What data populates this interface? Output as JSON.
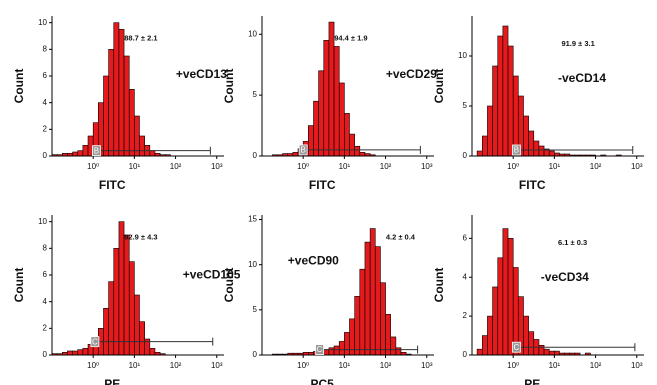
{
  "chart_data": [
    {
      "type": "histogram",
      "xlabel": "FITC",
      "ylabel": "Count",
      "annotation": "88.7 ± 2.1",
      "marker": "+veCD13",
      "log_x": true,
      "xlim": [
        0.1,
        1500
      ],
      "ylim": [
        0,
        10.5
      ],
      "xticks": [
        {
          "value": 1,
          "label": "10⁰"
        },
        {
          "value": 10,
          "label": "10¹"
        },
        {
          "value": 100,
          "label": "10²"
        },
        {
          "value": 1000,
          "label": "10³"
        }
      ],
      "yticks": [
        0,
        2,
        4,
        6,
        8,
        10
      ],
      "color": "#e41a1c",
      "edgecolor": "#000000",
      "bins": [
        0.1,
        0.133,
        0.178,
        0.237,
        0.316,
        0.422,
        0.562,
        0.75,
        1,
        1.33,
        1.78,
        2.37,
        3.16,
        4.22,
        5.62,
        7.5,
        10,
        13.3,
        17.8,
        23.7,
        31.6,
        42.2,
        56.2,
        75,
        100,
        133,
        178,
        237,
        316,
        422,
        562,
        750,
        1000
      ],
      "values": [
        0.1,
        0.1,
        0.2,
        0.2,
        0.3,
        0.4,
        0.8,
        1.5,
        2.5,
        4,
        6,
        8,
        10,
        9.5,
        7.5,
        5,
        3,
        1.5,
        0.8,
        0.4,
        0.2,
        0.1,
        0.1,
        0,
        0,
        0,
        0,
        0,
        0,
        0,
        0,
        0
      ],
      "gate": {
        "range": [
          1.2,
          700
        ],
        "y": 0.4
      },
      "gate_label": "B"
    },
    {
      "type": "histogram",
      "xlabel": "FITC",
      "ylabel": "Count",
      "annotation": "94.4 ± 1.9",
      "marker": "+veCD29",
      "log_x": true,
      "xlim": [
        0.1,
        1500
      ],
      "ylim": [
        0,
        11.5
      ],
      "xticks": [
        {
          "value": 1,
          "label": "10⁰"
        },
        {
          "value": 10,
          "label": "10¹"
        },
        {
          "value": 100,
          "label": "10²"
        },
        {
          "value": 1000,
          "label": "10³"
        }
      ],
      "yticks": [
        0,
        5,
        10
      ],
      "color": "#e41a1c",
      "edgecolor": "#000000",
      "bins": [
        0.1,
        0.133,
        0.178,
        0.237,
        0.316,
        0.422,
        0.562,
        0.75,
        1,
        1.33,
        1.78,
        2.37,
        3.16,
        4.22,
        5.62,
        7.5,
        10,
        13.3,
        17.8,
        23.7,
        31.6,
        42.2,
        56.2,
        75,
        100,
        133,
        178,
        237,
        316,
        422,
        562,
        750,
        1000
      ],
      "values": [
        0,
        0,
        0.1,
        0.1,
        0.2,
        0.2,
        0.3,
        0.6,
        1.2,
        2.5,
        4.5,
        7,
        9.5,
        11,
        9,
        6,
        3.5,
        1.8,
        0.8,
        0.3,
        0.2,
        0.1,
        0,
        0,
        0,
        0,
        0,
        0,
        0,
        0,
        0,
        0
      ],
      "gate": {
        "range": [
          1,
          700
        ],
        "y": 0.5
      },
      "gate_label": "B"
    },
    {
      "type": "histogram",
      "xlabel": "FITC",
      "ylabel": "Count",
      "annotation": "91.9 ± 3.1",
      "marker": "-veCD14",
      "log_x": true,
      "xlim": [
        0.1,
        1500
      ],
      "ylim": [
        0,
        14
      ],
      "xticks": [
        {
          "value": 1,
          "label": "10⁰"
        },
        {
          "value": 10,
          "label": "10¹"
        },
        {
          "value": 100,
          "label": "10²"
        },
        {
          "value": 1000,
          "label": "10³"
        }
      ],
      "yticks": [
        0,
        5,
        10
      ],
      "color": "#e41a1c",
      "edgecolor": "#000000",
      "bins": [
        0.1,
        0.133,
        0.178,
        0.237,
        0.316,
        0.422,
        0.562,
        0.75,
        1,
        1.33,
        1.78,
        2.37,
        3.16,
        4.22,
        5.62,
        7.5,
        10,
        13.3,
        17.8,
        23.7,
        31.6,
        42.2,
        56.2,
        75,
        100,
        133,
        178,
        237,
        316,
        422,
        562,
        750,
        1000
      ],
      "values": [
        0,
        0.5,
        2,
        5,
        9,
        12,
        13,
        11,
        8,
        6,
        4,
        2.5,
        1.5,
        1,
        0.7,
        0.5,
        0.3,
        0.2,
        0.2,
        0.1,
        0.1,
        0.1,
        0.1,
        0.1,
        0,
        0.1,
        0,
        0,
        0.1,
        0,
        0,
        0
      ],
      "gate": {
        "range": [
          1.2,
          800
        ],
        "y": 0.6
      },
      "gate_label": "B"
    },
    {
      "type": "histogram",
      "xlabel": "PE",
      "ylabel": "Count",
      "annotation": "92.9 ± 4.3",
      "marker": "+veCD105",
      "log_x": true,
      "xlim": [
        0.1,
        1500
      ],
      "ylim": [
        0,
        10.5
      ],
      "xticks": [
        {
          "value": 1,
          "label": "10⁰"
        },
        {
          "value": 10,
          "label": "10¹"
        },
        {
          "value": 100,
          "label": "10²"
        },
        {
          "value": 1000,
          "label": "10³"
        }
      ],
      "yticks": [
        0,
        2,
        4,
        6,
        8,
        10
      ],
      "color": "#e41a1c",
      "edgecolor": "#000000",
      "bins": [
        0.1,
        0.133,
        0.178,
        0.237,
        0.316,
        0.422,
        0.562,
        0.75,
        1,
        1.33,
        1.78,
        2.37,
        3.16,
        4.22,
        5.62,
        7.5,
        10,
        13.3,
        17.8,
        23.7,
        31.6,
        42.2,
        56.2,
        75,
        100,
        133,
        178,
        237,
        316,
        422,
        562,
        750,
        1000
      ],
      "values": [
        0.1,
        0.1,
        0.2,
        0.3,
        0.3,
        0.4,
        0.5,
        0.8,
        1.2,
        2,
        3.5,
        5.5,
        8,
        10,
        9,
        7,
        4.5,
        2.5,
        1.2,
        0.5,
        0.2,
        0.1,
        0,
        0,
        0,
        0,
        0,
        0,
        0,
        0,
        0,
        0
      ],
      "gate": {
        "range": [
          1.1,
          800
        ],
        "y": 1
      },
      "gate_label": "C"
    },
    {
      "type": "histogram",
      "xlabel": "PC5",
      "ylabel": "Count",
      "annotation": "4.2 ± 0.4",
      "marker": "+veCD90",
      "log_x": true,
      "xlim": [
        0.1,
        1500
      ],
      "ylim": [
        0,
        15.5
      ],
      "xticks": [
        {
          "value": 1,
          "label": "10⁰"
        },
        {
          "value": 10,
          "label": "10¹"
        },
        {
          "value": 100,
          "label": "10²"
        },
        {
          "value": 1000,
          "label": "10³"
        }
      ],
      "yticks": [
        0,
        5,
        10,
        15
      ],
      "color": "#e41a1c",
      "edgecolor": "#000000",
      "bins": [
        0.1,
        0.133,
        0.178,
        0.237,
        0.316,
        0.422,
        0.562,
        0.75,
        1,
        1.33,
        1.78,
        2.37,
        3.16,
        4.22,
        5.62,
        7.5,
        10,
        13.3,
        17.8,
        23.7,
        31.6,
        42.2,
        56.2,
        75,
        100,
        133,
        178,
        237,
        316,
        422,
        562,
        750,
        1000
      ],
      "values": [
        0,
        0,
        0.1,
        0.1,
        0.1,
        0.2,
        0.2,
        0.2,
        0.3,
        0.3,
        0.4,
        0.5,
        0.6,
        0.8,
        1,
        1.5,
        2.5,
        4,
        6.5,
        9.5,
        12.5,
        14,
        12,
        8,
        4.5,
        2,
        0.8,
        0.3,
        0.1,
        0,
        0,
        0
      ],
      "gate": {
        "range": [
          2.5,
          600
        ],
        "y": 0.6
      },
      "gate_label": "C"
    },
    {
      "type": "histogram",
      "xlabel": "PE",
      "ylabel": "Count",
      "annotation": "6.1 ± 0.3",
      "marker": "-veCD34",
      "log_x": true,
      "xlim": [
        0.1,
        1500
      ],
      "ylim": [
        0,
        7.2
      ],
      "xticks": [
        {
          "value": 1,
          "label": "10⁰"
        },
        {
          "value": 10,
          "label": "10¹"
        },
        {
          "value": 100,
          "label": "10²"
        },
        {
          "value": 1000,
          "label": "10³"
        }
      ],
      "yticks": [
        0,
        2,
        4,
        6
      ],
      "color": "#e41a1c",
      "edgecolor": "#000000",
      "bins": [
        0.1,
        0.133,
        0.178,
        0.237,
        0.316,
        0.422,
        0.562,
        0.75,
        1,
        1.33,
        1.78,
        2.37,
        3.16,
        4.22,
        5.62,
        7.5,
        10,
        13.3,
        17.8,
        23.7,
        31.6,
        42.2,
        56.2,
        75,
        100,
        133,
        178,
        237,
        316,
        422,
        562,
        750,
        1000
      ],
      "values": [
        0,
        0.3,
        1,
        2,
        3.5,
        5,
        6.5,
        6,
        4.5,
        3,
        2,
        1.2,
        0.8,
        0.5,
        0.3,
        0.2,
        0.2,
        0.1,
        0.1,
        0.1,
        0.1,
        0,
        0.1,
        0,
        0,
        0,
        0,
        0,
        0,
        0,
        0,
        0
      ],
      "gate": {
        "range": [
          1.2,
          900
        ],
        "y": 0.4
      },
      "gate_label": "C"
    }
  ]
}
